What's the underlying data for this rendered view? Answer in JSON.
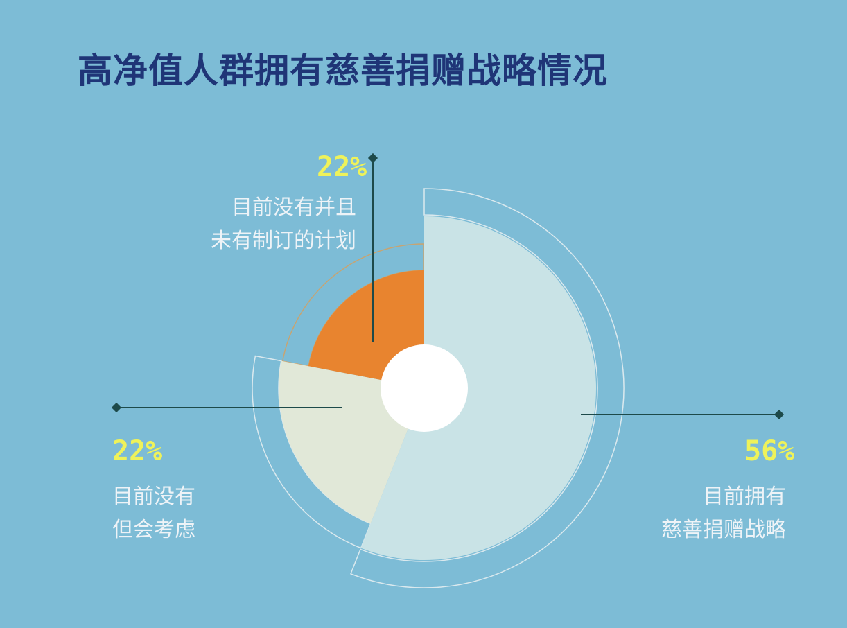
{
  "title": "高净值人群拥有慈善捐赠战略情况",
  "colors": {
    "background": "#7dbcd6",
    "title": "#1f3577",
    "percent": "#eef25a",
    "label": "#eef3f7",
    "leader": "#1d4a4a"
  },
  "chart_data": {
    "type": "pie",
    "title": "高净值人群拥有慈善捐赠战略情况",
    "slices": [
      {
        "value": 56,
        "percent_label": "56%",
        "label_lines": [
          "目前拥有",
          "慈善捐赠战略"
        ],
        "color": "#c9e3e6"
      },
      {
        "value": 22,
        "percent_label": "22%",
        "label_lines": [
          "目前没有",
          "但会考虑"
        ],
        "color": "#e1e8d8"
      },
      {
        "value": 22,
        "percent_label": "22%",
        "label_lines": [
          "目前没有并且",
          "未有制订的计划"
        ],
        "color": "#e8842f"
      }
    ]
  }
}
